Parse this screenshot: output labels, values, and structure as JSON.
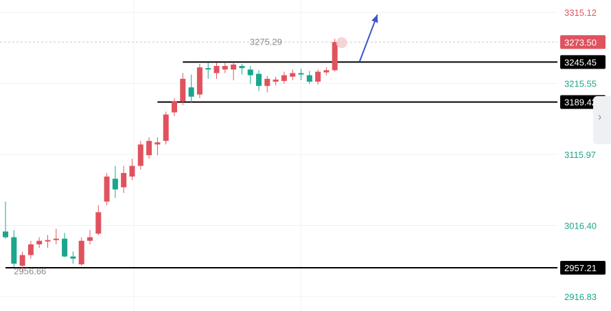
{
  "chart_data": {
    "type": "candlestick",
    "y_axis": {
      "side": "right",
      "ticks": [
        {
          "value": 3315.12,
          "label": "3315.12",
          "color": "#e0525e"
        },
        {
          "value": 3215.55,
          "label": "3215.55",
          "color": "#1aa68c"
        },
        {
          "value": 3115.97,
          "label": "3115.97",
          "color": "#1aa68c"
        },
        {
          "value": 3016.4,
          "label": "3016.40",
          "color": "#1aa68c"
        },
        {
          "value": 2916.83,
          "label": "2916.83",
          "color": "#1aa68c"
        }
      ]
    },
    "current_price": {
      "value": 3273.5,
      "label": "3273.50",
      "color": "#e0525e"
    },
    "levels": [
      {
        "value": 3245.45,
        "label": "3245.45",
        "from_index": 21
      },
      {
        "value": 3189.42,
        "label": "3189.42",
        "from_index": 18
      },
      {
        "value": 2957.21,
        "label": "2957.21",
        "from_index": 0
      }
    ],
    "annotations": [
      {
        "text": "3275.29",
        "value": 3275.29,
        "index": 33
      },
      {
        "text": "2956.66",
        "value": 2956.66,
        "index": 1
      }
    ],
    "colors": {
      "up": "#e0525e",
      "down": "#1aa68c",
      "level_line": "#000000",
      "arrow": "#3a55c8"
    },
    "arrow": {
      "from_value": 3245,
      "to_value": 3310,
      "direction": "up"
    },
    "candles": [
      {
        "open": 3008,
        "high": 3050,
        "low": 2998,
        "close": 3000
      },
      {
        "open": 3000,
        "high": 3010,
        "low": 2958,
        "close": 2963
      },
      {
        "open": 2960,
        "high": 2980,
        "low": 2953,
        "close": 2975
      },
      {
        "open": 2975,
        "high": 2995,
        "low": 2970,
        "close": 2990
      },
      {
        "open": 2990,
        "high": 3000,
        "low": 2985,
        "close": 2995
      },
      {
        "open": 2995,
        "high": 3003,
        "low": 2985,
        "close": 2996
      },
      {
        "open": 2996,
        "high": 3012,
        "low": 2990,
        "close": 2998
      },
      {
        "open": 2998,
        "high": 3006,
        "low": 2972,
        "close": 2973
      },
      {
        "open": 2973,
        "high": 2980,
        "low": 2963,
        "close": 2970
      },
      {
        "open": 2962,
        "high": 3000,
        "low": 2960,
        "close": 2995
      },
      {
        "open": 2995,
        "high": 3010,
        "low": 2990,
        "close": 3000
      },
      {
        "open": 3005,
        "high": 3045,
        "low": 3003,
        "close": 3035
      },
      {
        "open": 3050,
        "high": 3090,
        "low": 3045,
        "close": 3085
      },
      {
        "open": 3082,
        "high": 3100,
        "low": 3055,
        "close": 3067
      },
      {
        "open": 3070,
        "high": 3100,
        "low": 3062,
        "close": 3090
      },
      {
        "open": 3085,
        "high": 3110,
        "low": 3080,
        "close": 3100
      },
      {
        "open": 3100,
        "high": 3135,
        "low": 3095,
        "close": 3130
      },
      {
        "open": 3115,
        "high": 3140,
        "low": 3110,
        "close": 3135
      },
      {
        "open": 3130,
        "high": 3140,
        "low": 3115,
        "close": 3133
      },
      {
        "open": 3135,
        "high": 3176,
        "low": 3130,
        "close": 3172
      },
      {
        "open": 3175,
        "high": 3195,
        "low": 3170,
        "close": 3190
      },
      {
        "open": 3190,
        "high": 3230,
        "low": 3185,
        "close": 3222
      },
      {
        "open": 3210,
        "high": 3228,
        "low": 3188,
        "close": 3197
      },
      {
        "open": 3200,
        "high": 3243,
        "low": 3195,
        "close": 3238
      },
      {
        "open": 3237,
        "high": 3245,
        "low": 3222,
        "close": 3235
      },
      {
        "open": 3230,
        "high": 3245,
        "low": 3222,
        "close": 3240
      },
      {
        "open": 3235,
        "high": 3244,
        "low": 3230,
        "close": 3240
      },
      {
        "open": 3235,
        "high": 3244,
        "low": 3220,
        "close": 3242
      },
      {
        "open": 3240,
        "high": 3243,
        "low": 3228,
        "close": 3237
      },
      {
        "open": 3235,
        "high": 3240,
        "low": 3215,
        "close": 3227
      },
      {
        "open": 3229,
        "high": 3234,
        "low": 3205,
        "close": 3212
      },
      {
        "open": 3212,
        "high": 3226,
        "low": 3203,
        "close": 3222
      },
      {
        "open": 3218,
        "high": 3225,
        "low": 3213,
        "close": 3221
      },
      {
        "open": 3219,
        "high": 3232,
        "low": 3215,
        "close": 3227
      },
      {
        "open": 3225,
        "high": 3235,
        "low": 3220,
        "close": 3230
      },
      {
        "open": 3230,
        "high": 3236,
        "low": 3220,
        "close": 3228
      },
      {
        "open": 3227,
        "high": 3233,
        "low": 3215,
        "close": 3218
      },
      {
        "open": 3218,
        "high": 3235,
        "low": 3214,
        "close": 3232
      },
      {
        "open": 3231,
        "high": 3238,
        "low": 3227,
        "close": 3234
      },
      {
        "open": 3234,
        "high": 3278,
        "low": 3232,
        "close": 3273.5
      }
    ]
  }
}
